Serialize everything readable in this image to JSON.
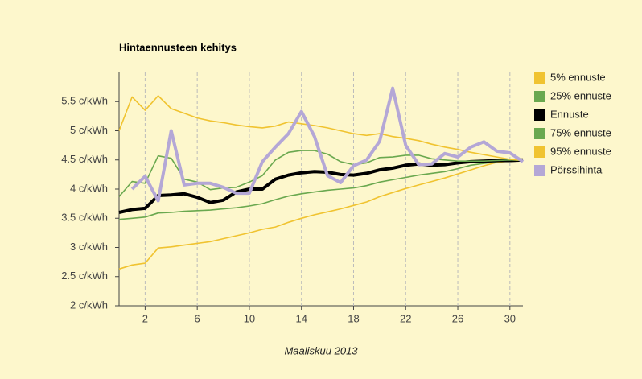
{
  "chart_data": {
    "type": "line",
    "title": "Hintaennusteen kehitys",
    "x_label": "Maaliskuu 2013",
    "x": [
      0,
      1,
      2,
      3,
      4,
      5,
      6,
      7,
      8,
      9,
      10,
      11,
      12,
      13,
      14,
      15,
      16,
      17,
      18,
      19,
      20,
      21,
      22,
      23,
      24,
      25,
      26,
      27,
      28,
      29,
      30,
      31
    ],
    "xlim": [
      0,
      31
    ],
    "xticks": [
      2,
      6,
      10,
      14,
      18,
      22,
      26,
      30
    ],
    "ylim": [
      2,
      6
    ],
    "yticks": [
      {
        "value": 2,
        "label": "2 c/kWh"
      },
      {
        "value": 2.5,
        "label": "2.5 c/kWh"
      },
      {
        "value": 3,
        "label": "3 c/kWh"
      },
      {
        "value": 3.5,
        "label": "3.5 c/kWh"
      },
      {
        "value": 4,
        "label": "4 c/kWh"
      },
      {
        "value": 4.5,
        "label": "4.5 c/kWh"
      },
      {
        "value": 5,
        "label": "5 c/kWh"
      },
      {
        "value": 5.5,
        "label": "5.5 c/kWh"
      }
    ],
    "grid": "x",
    "legend": "right",
    "series": [
      {
        "name": "5% ennuste",
        "color": "#f0c330",
        "values": [
          2.63,
          2.7,
          2.73,
          2.99,
          3.01,
          3.04,
          3.07,
          3.1,
          3.15,
          3.2,
          3.25,
          3.31,
          3.35,
          3.43,
          3.5,
          3.56,
          3.61,
          3.66,
          3.72,
          3.78,
          3.87,
          3.94,
          4.01,
          4.07,
          4.13,
          4.19,
          4.26,
          4.33,
          4.4,
          4.46,
          4.48,
          4.49
        ]
      },
      {
        "name": "25% ennuste",
        "color": "#6aa84f",
        "values": [
          3.48,
          3.5,
          3.52,
          3.59,
          3.6,
          3.62,
          3.63,
          3.64,
          3.66,
          3.68,
          3.71,
          3.75,
          3.82,
          3.88,
          3.92,
          3.95,
          3.98,
          4.0,
          4.02,
          4.06,
          4.12,
          4.16,
          4.2,
          4.24,
          4.27,
          4.3,
          4.35,
          4.41,
          4.44,
          4.47,
          4.49,
          4.49
        ]
      },
      {
        "name": "Ennuste",
        "color": "#000000",
        "values": [
          3.6,
          3.65,
          3.67,
          3.89,
          3.9,
          3.92,
          3.86,
          3.77,
          3.81,
          3.95,
          4.0,
          4.0,
          4.17,
          4.24,
          4.28,
          4.3,
          4.29,
          4.25,
          4.24,
          4.27,
          4.33,
          4.36,
          4.41,
          4.43,
          4.41,
          4.42,
          4.45,
          4.47,
          4.48,
          4.49,
          4.49,
          4.5
        ]
      },
      {
        "name": "75% ennuste",
        "color": "#6aa84f",
        "values": [
          3.87,
          4.13,
          4.1,
          4.57,
          4.53,
          4.17,
          4.12,
          3.99,
          4.02,
          4.03,
          4.12,
          4.23,
          4.5,
          4.63,
          4.66,
          4.66,
          4.6,
          4.47,
          4.42,
          4.45,
          4.54,
          4.55,
          4.58,
          4.58,
          4.52,
          4.5,
          4.48,
          4.48,
          4.48,
          4.49,
          4.5,
          4.49
        ]
      },
      {
        "name": "95% ennuste",
        "color": "#f0c330",
        "values": [
          5.0,
          5.58,
          5.35,
          5.6,
          5.38,
          5.3,
          5.22,
          5.17,
          5.14,
          5.1,
          5.07,
          5.05,
          5.08,
          5.15,
          5.12,
          5.09,
          5.05,
          5.0,
          4.95,
          4.92,
          4.95,
          4.9,
          4.87,
          4.83,
          4.77,
          4.72,
          4.68,
          4.63,
          4.59,
          4.55,
          4.51,
          4.49
        ]
      },
      {
        "name": "Pörssihinta",
        "color": "#b4a7d6",
        "values": [
          null,
          4.0,
          4.22,
          3.8,
          5.0,
          4.07,
          4.1,
          4.1,
          4.03,
          3.93,
          3.93,
          4.47,
          4.72,
          4.95,
          5.33,
          4.9,
          4.23,
          4.11,
          4.4,
          4.5,
          4.82,
          5.73,
          4.75,
          4.42,
          4.43,
          4.61,
          4.55,
          4.72,
          4.81,
          4.65,
          4.62,
          4.47
        ]
      }
    ]
  }
}
